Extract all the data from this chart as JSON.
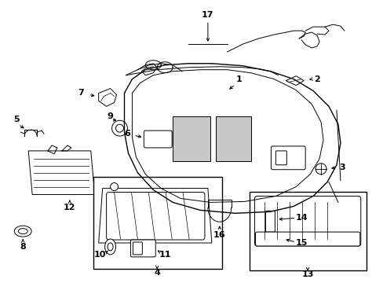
{
  "background_color": "#ffffff",
  "line_color": "#000000",
  "lw_main": 1.0,
  "lw_thin": 0.7,
  "label_fontsize": 8.0,
  "figsize": [
    4.89,
    3.6
  ],
  "dpi": 100
}
